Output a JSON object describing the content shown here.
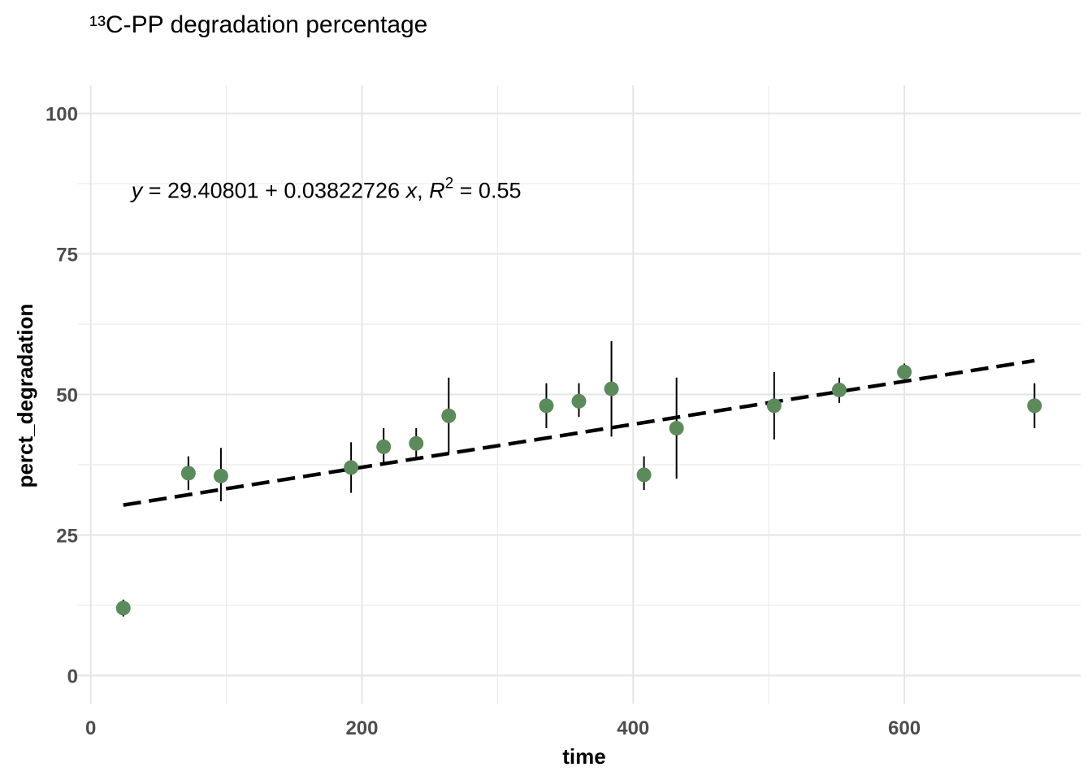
{
  "chart_data": {
    "type": "scatter",
    "title": "¹³C-PP degradation percentage",
    "xlabel": "time",
    "ylabel": "perct_degradation",
    "xlim": [
      -10,
      730
    ],
    "ylim": [
      -5,
      105
    ],
    "x_ticks": [
      0,
      200,
      400,
      600
    ],
    "y_ticks": [
      0,
      25,
      50,
      75,
      100
    ],
    "grid": true,
    "point_color": "#5b8a5b",
    "points": [
      {
        "x": 24,
        "y": 12,
        "err_low": 10.5,
        "err_high": 13.5
      },
      {
        "x": 72,
        "y": 36,
        "err_low": 33,
        "err_high": 39
      },
      {
        "x": 96,
        "y": 35.5,
        "err_low": 31,
        "err_high": 40.5
      },
      {
        "x": 192,
        "y": 37,
        "err_low": 32.5,
        "err_high": 41.5
      },
      {
        "x": 216,
        "y": 40.7,
        "err_low": 37.5,
        "err_high": 44
      },
      {
        "x": 240,
        "y": 41.3,
        "err_low": 38.5,
        "err_high": 44
      },
      {
        "x": 264,
        "y": 46.2,
        "err_low": 39.5,
        "err_high": 53
      },
      {
        "x": 336,
        "y": 48,
        "err_low": 44,
        "err_high": 52
      },
      {
        "x": 360,
        "y": 48.8,
        "err_low": 46,
        "err_high": 52
      },
      {
        "x": 384,
        "y": 51,
        "err_low": 42.5,
        "err_high": 59.5
      },
      {
        "x": 408,
        "y": 35.7,
        "err_low": 33,
        "err_high": 39
      },
      {
        "x": 432,
        "y": 44,
        "err_low": 35,
        "err_high": 53
      },
      {
        "x": 504,
        "y": 48,
        "err_low": 42,
        "err_high": 54
      },
      {
        "x": 552,
        "y": 50.8,
        "err_low": 48.5,
        "err_high": 53
      },
      {
        "x": 600,
        "y": 54,
        "err_low": 52.5,
        "err_high": 55.5
      },
      {
        "x": 696,
        "y": 48,
        "err_low": 44,
        "err_high": 52
      }
    ],
    "regression": {
      "intercept": 29.40801,
      "slope": 0.03822726,
      "x_range": [
        24,
        696
      ],
      "r2": "0.55",
      "equation_parts": {
        "y_var": "y",
        "eq_text": " = 29.40801 + 0.03822726 ",
        "x_var": "x",
        "sep": ", ",
        "r_var": "R",
        "r_sup": "2",
        "r_text": " = 0.55"
      },
      "equation_pos": [
        30,
        85
      ]
    }
  }
}
